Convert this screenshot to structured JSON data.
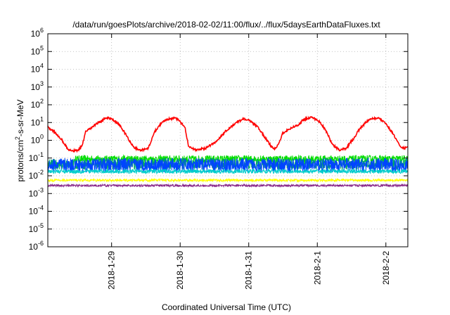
{
  "chart_data": {
    "type": "line",
    "title": "/data/run/goesPlots/archive/2018-02-02/11:00/flux/../flux/5daysEarthDataFluxes.txt",
    "xlabel": "Coordinated Universal Time (UTC)",
    "ylabel_parts": [
      "protons/cm",
      "2",
      "-s-sr-MeV"
    ],
    "yscale": "log",
    "ylim": [
      1e-06,
      1000000.0
    ],
    "ytick_exponents": [
      -6,
      -5,
      -4,
      -3,
      -2,
      -1,
      0,
      1,
      2,
      3,
      4,
      5,
      6
    ],
    "xlim_days": [
      0,
      5.25
    ],
    "xticks": [
      {
        "label": "2018-1-29",
        "day": 0.93
      },
      {
        "label": "2018-1-30",
        "day": 1.93
      },
      {
        "label": "2018-1-31",
        "day": 2.93
      },
      {
        "label": "2018-2-1",
        "day": 3.93
      },
      {
        "label": "2018-2-2",
        "day": 4.93
      }
    ],
    "grid": true,
    "series": [
      {
        "color": "#ff0000",
        "values_day_log10": [
          [
            0.0,
            0.75
          ],
          [
            0.1,
            0.45
          ],
          [
            0.2,
            0.05
          ],
          [
            0.3,
            -0.55
          ],
          [
            0.38,
            -0.6
          ],
          [
            0.45,
            -0.55
          ],
          [
            0.5,
            -0.3
          ],
          [
            0.55,
            0.45
          ],
          [
            0.7,
            0.9
          ],
          [
            0.85,
            1.25
          ],
          [
            0.92,
            1.25
          ],
          [
            1.05,
            0.85
          ],
          [
            1.15,
            0.25
          ],
          [
            1.25,
            -0.4
          ],
          [
            1.35,
            -0.55
          ],
          [
            1.45,
            -0.5
          ],
          [
            1.5,
            -0.15
          ],
          [
            1.55,
            0.45
          ],
          [
            1.65,
            0.95
          ],
          [
            1.75,
            1.2
          ],
          [
            1.85,
            1.25
          ],
          [
            1.9,
            1.15
          ],
          [
            2.0,
            0.75
          ],
          [
            2.05,
            -0.3
          ],
          [
            2.15,
            -0.55
          ],
          [
            2.3,
            -0.45
          ],
          [
            2.45,
            -0.1
          ],
          [
            2.6,
            0.55
          ],
          [
            2.75,
            1.0
          ],
          [
            2.85,
            1.2
          ],
          [
            2.92,
            1.15
          ],
          [
            3.05,
            0.8
          ],
          [
            3.15,
            0.25
          ],
          [
            3.25,
            -0.3
          ],
          [
            3.32,
            -0.5
          ],
          [
            3.38,
            -0.1
          ],
          [
            3.42,
            0.4
          ],
          [
            3.55,
            0.7
          ],
          [
            3.65,
            0.85
          ],
          [
            3.72,
            1.15
          ],
          [
            3.85,
            1.3
          ],
          [
            3.95,
            1.1
          ],
          [
            4.05,
            0.6
          ],
          [
            4.15,
            -0.25
          ],
          [
            4.25,
            -0.55
          ],
          [
            4.35,
            -0.45
          ],
          [
            4.45,
            0.05
          ],
          [
            4.55,
            0.65
          ],
          [
            4.65,
            1.05
          ],
          [
            4.75,
            1.25
          ],
          [
            4.85,
            1.2
          ],
          [
            4.95,
            0.85
          ],
          [
            5.05,
            0.25
          ],
          [
            5.15,
            -0.4
          ],
          [
            5.2,
            -0.45
          ],
          [
            5.25,
            -0.35
          ]
        ]
      },
      {
        "color": "#00dd00",
        "base_log10": -1.05,
        "amp": 0.2,
        "start_day": 0.4
      },
      {
        "color": "#00aa66",
        "base_log10": -1.35,
        "amp": 0.3,
        "start_day": 0.0
      },
      {
        "color": "#0044ff",
        "base_log10": -1.4,
        "amp": 0.4,
        "start_day": 0.0
      },
      {
        "color": "#00cccc",
        "base_log10": -1.75,
        "amp": 0.12,
        "start_day": 0.0
      },
      {
        "color": "#ffff00",
        "base_log10": -2.25,
        "amp": 0.07,
        "start_day": 0.0
      },
      {
        "color": "#8a2a8a",
        "base_log10": -2.55,
        "amp": 0.06,
        "start_day": 0.0
      }
    ]
  }
}
